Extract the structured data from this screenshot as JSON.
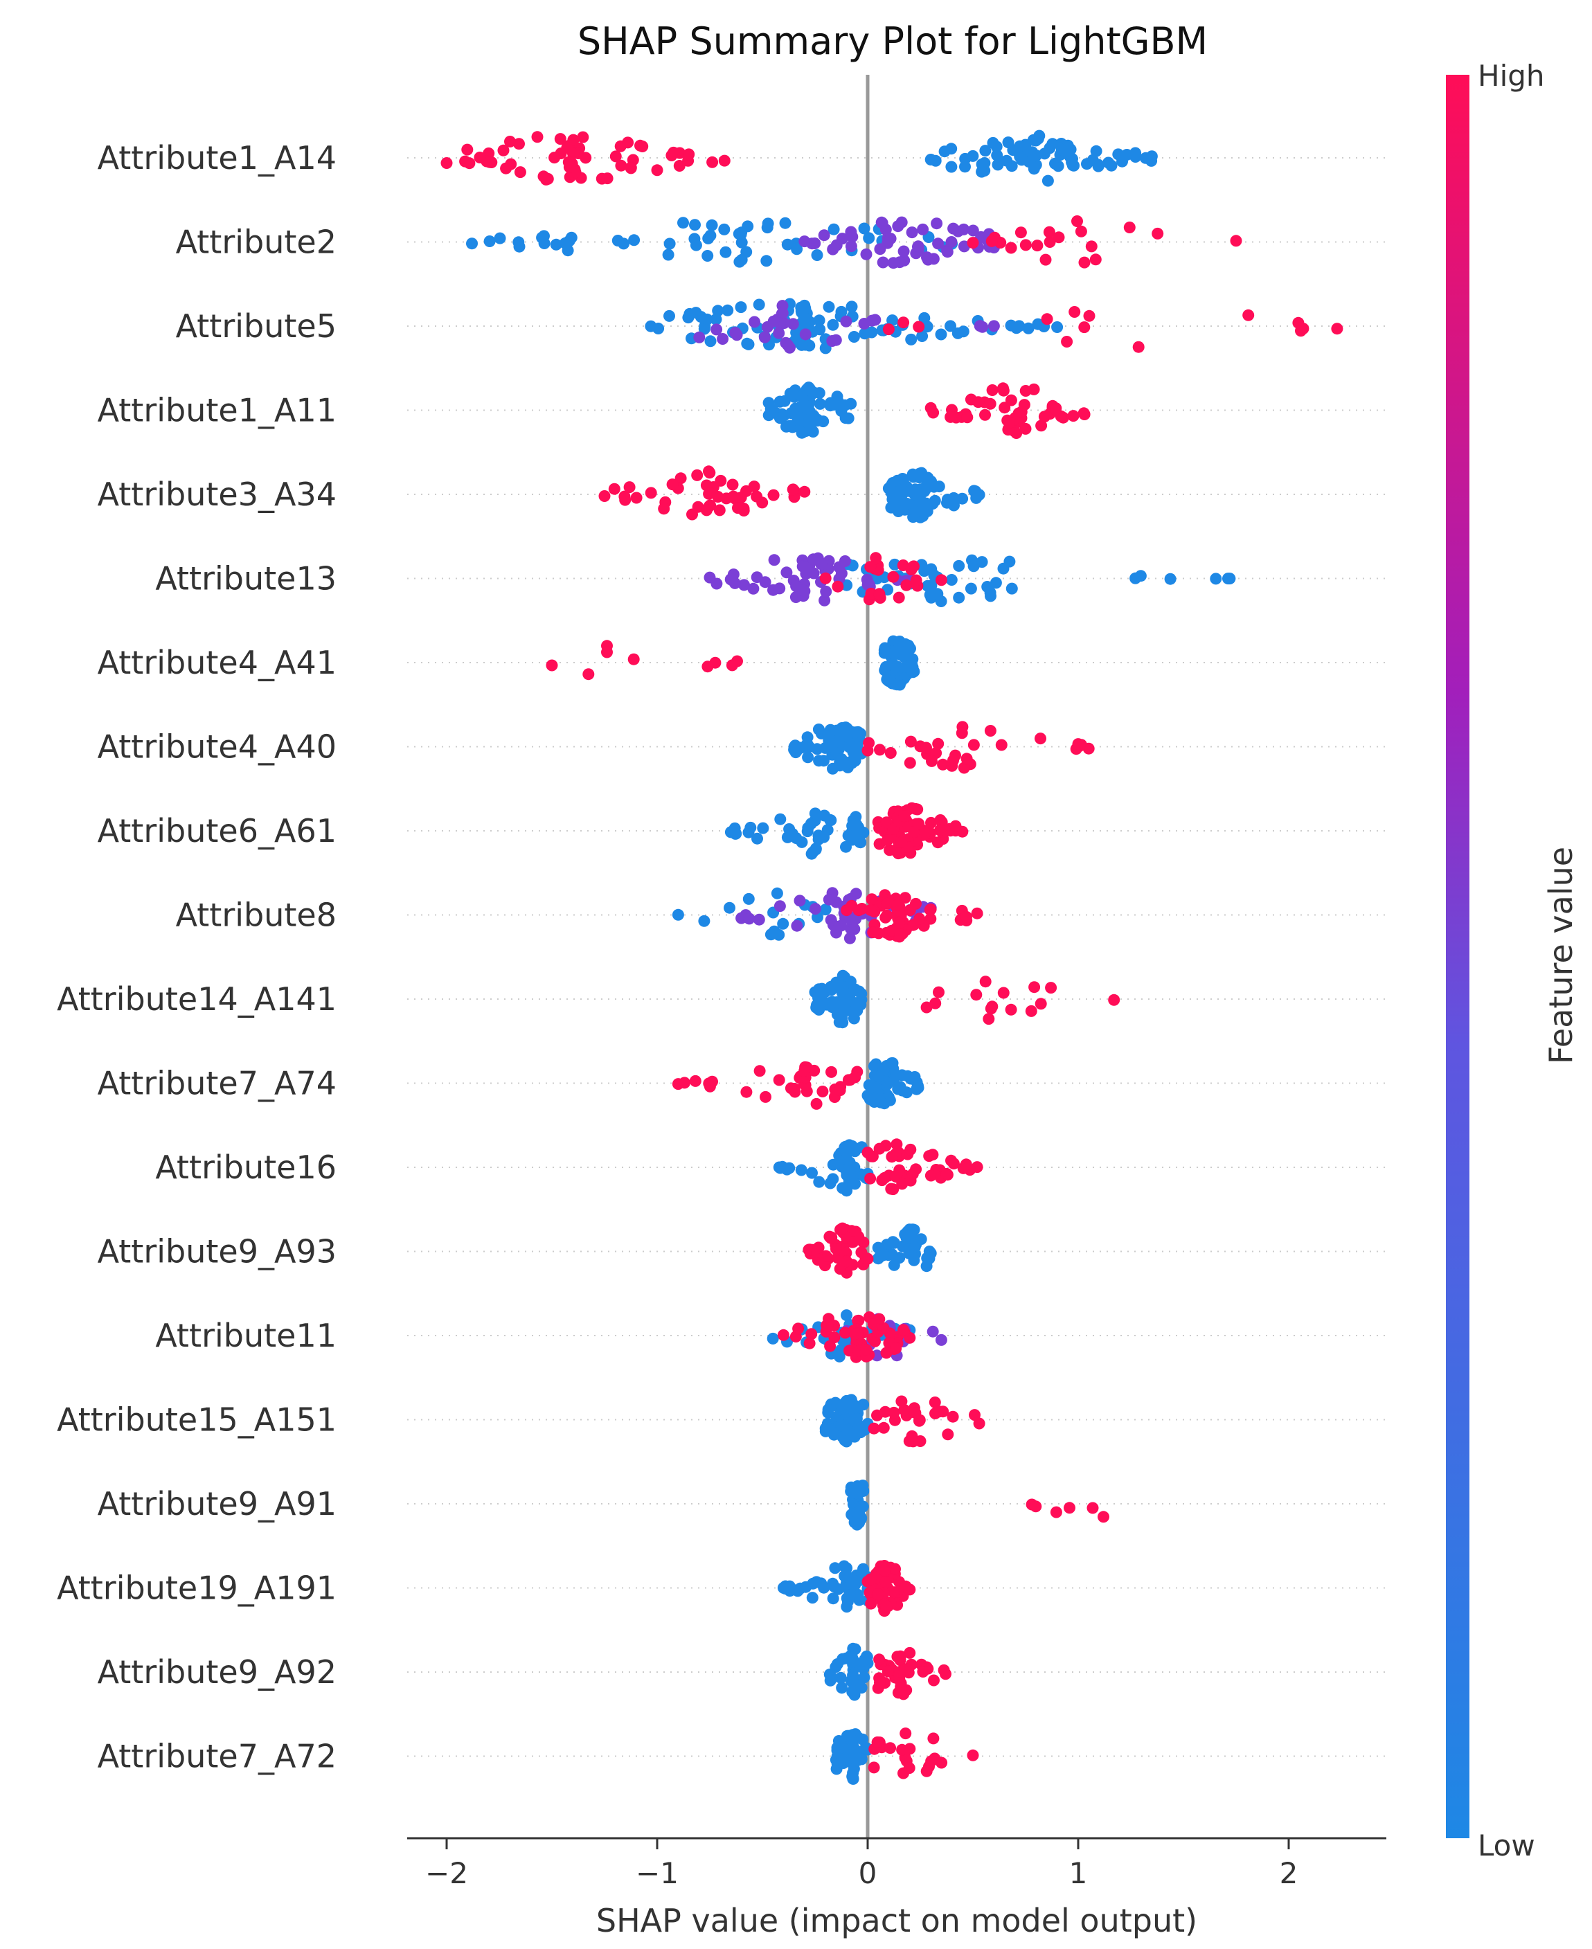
{
  "chart_data": {
    "type": "scatter",
    "title": "SHAP Summary Plot for LightGBM",
    "xlabel": "SHAP value (impact on model output)",
    "xlim": [
      -2.2,
      2.45
    ],
    "xticks": [
      -2,
      -1,
      0,
      1,
      2
    ],
    "xtick_labels": [
      "−2",
      "−1",
      "0",
      "1",
      "2"
    ],
    "zero_line": 0,
    "grid": false,
    "colorbar": {
      "label": "Feature value",
      "high_label": "High",
      "low_label": "Low",
      "high_color": "#ff0d57",
      "mid_color": "#7b3fd6",
      "low_color": "#1e88e5"
    },
    "features": [
      {
        "name": "Attribute1_A14",
        "low": {
          "min": 0.3,
          "max": 1.35,
          "center": 0.8,
          "n": 70
        },
        "mid": {
          "min": 0,
          "max": 0,
          "center": 0,
          "n": 0
        },
        "high": {
          "min": -2.0,
          "max": -0.68,
          "center": -1.4,
          "n": 60
        }
      },
      {
        "name": "Attribute2",
        "low": {
          "min": -1.88,
          "max": 0.4,
          "center": -0.6,
          "n": 55
        },
        "mid": {
          "min": -0.3,
          "max": 0.6,
          "center": 0.2,
          "n": 55
        },
        "high": {
          "min": 0.5,
          "max": 1.75,
          "center": 1.0,
          "n": 20
        }
      },
      {
        "name": "Attribute5",
        "low": {
          "min": -1.03,
          "max": 0.9,
          "center": -0.3,
          "n": 90
        },
        "mid": {
          "min": -0.8,
          "max": 0.6,
          "center": -0.4,
          "n": 30
        },
        "high": {
          "min": 0.1,
          "max": 2.23,
          "center": 1.2,
          "n": 14
        }
      },
      {
        "name": "Attribute1_A11",
        "low": {
          "min": -0.47,
          "max": -0.08,
          "center": -0.28,
          "n": 75
        },
        "mid": {
          "min": 0,
          "max": 0,
          "center": 0,
          "n": 0
        },
        "high": {
          "min": 0.3,
          "max": 1.03,
          "center": 0.7,
          "n": 45
        }
      },
      {
        "name": "Attribute3_A34",
        "low": {
          "min": 0.1,
          "max": 0.53,
          "center": 0.25,
          "n": 70
        },
        "mid": {
          "min": 0,
          "max": 0,
          "center": 0,
          "n": 0
        },
        "high": {
          "min": -1.25,
          "max": -0.3,
          "center": -0.75,
          "n": 45
        }
      },
      {
        "name": "Attribute13",
        "low": {
          "min": -0.1,
          "max": 1.72,
          "center": 0.3,
          "n": 45
        },
        "mid": {
          "min": -0.75,
          "max": 0.2,
          "center": -0.3,
          "n": 50
        },
        "high": {
          "min": -0.2,
          "max": 0.35,
          "center": 0.05,
          "n": 20
        }
      },
      {
        "name": "Attribute4_A41",
        "low": {
          "min": 0.08,
          "max": 0.22,
          "center": 0.14,
          "n": 60
        },
        "mid": {
          "min": 0,
          "max": 0,
          "center": 0,
          "n": 0
        },
        "high": {
          "min": -1.5,
          "max": -0.62,
          "center": -1.1,
          "n": 9
        }
      },
      {
        "name": "Attribute4_A40",
        "low": {
          "min": -0.35,
          "max": -0.03,
          "center": -0.15,
          "n": 70
        },
        "mid": {
          "min": 0,
          "max": 0,
          "center": 0,
          "n": 0
        },
        "high": {
          "min": 0.0,
          "max": 1.05,
          "center": 0.4,
          "n": 30
        }
      },
      {
        "name": "Attribute6_A61",
        "low": {
          "min": -0.65,
          "max": -0.02,
          "center": -0.25,
          "n": 45
        },
        "mid": {
          "min": 0,
          "max": 0,
          "center": 0,
          "n": 0
        },
        "high": {
          "min": 0.05,
          "max": 0.45,
          "center": 0.18,
          "n": 70
        }
      },
      {
        "name": "Attribute8",
        "low": {
          "min": -0.9,
          "max": -0.2,
          "center": -0.45,
          "n": 15
        },
        "mid": {
          "min": -0.6,
          "max": 0.3,
          "center": -0.1,
          "n": 40
        },
        "high": {
          "min": -0.1,
          "max": 0.52,
          "center": 0.15,
          "n": 55
        }
      },
      {
        "name": "Attribute14_A141",
        "low": {
          "min": -0.25,
          "max": -0.03,
          "center": -0.12,
          "n": 60
        },
        "mid": {
          "min": 0,
          "max": 0,
          "center": 0,
          "n": 0
        },
        "high": {
          "min": 0.28,
          "max": 1.17,
          "center": 0.6,
          "n": 15
        }
      },
      {
        "name": "Attribute7_A74",
        "low": {
          "min": 0.0,
          "max": 0.24,
          "center": 0.08,
          "n": 60
        },
        "mid": {
          "min": 0,
          "max": 0,
          "center": 0,
          "n": 0
        },
        "high": {
          "min": -0.9,
          "max": -0.05,
          "center": -0.3,
          "n": 35
        }
      },
      {
        "name": "Attribute16",
        "low": {
          "min": -0.42,
          "max": 0.0,
          "center": -0.1,
          "n": 50
        },
        "mid": {
          "min": 0,
          "max": 0,
          "center": 0,
          "n": 0
        },
        "high": {
          "min": 0.0,
          "max": 0.52,
          "center": 0.15,
          "n": 40
        }
      },
      {
        "name": "Attribute9_A93",
        "low": {
          "min": 0.05,
          "max": 0.3,
          "center": 0.2,
          "n": 40
        },
        "mid": {
          "min": 0,
          "max": 0,
          "center": 0,
          "n": 0
        },
        "high": {
          "min": -0.28,
          "max": 0.0,
          "center": -0.1,
          "n": 45
        }
      },
      {
        "name": "Attribute11",
        "low": {
          "min": -0.45,
          "max": 0.2,
          "center": -0.1,
          "n": 25
        },
        "mid": {
          "min": -0.1,
          "max": 0.35,
          "center": 0.12,
          "n": 20
        },
        "high": {
          "min": -0.4,
          "max": 0.2,
          "center": -0.05,
          "n": 50
        }
      },
      {
        "name": "Attribute15_A151",
        "low": {
          "min": -0.2,
          "max": 0.0,
          "center": -0.1,
          "n": 60
        },
        "mid": {
          "min": 0,
          "max": 0,
          "center": 0,
          "n": 0
        },
        "high": {
          "min": 0.03,
          "max": 0.53,
          "center": 0.25,
          "n": 25
        }
      },
      {
        "name": "Attribute9_A91",
        "low": {
          "min": -0.08,
          "max": -0.02,
          "center": -0.05,
          "n": 30
        },
        "mid": {
          "min": 0,
          "max": 0,
          "center": 0,
          "n": 0
        },
        "high": {
          "min": 0.78,
          "max": 1.12,
          "center": 1.0,
          "n": 6
        }
      },
      {
        "name": "Attribute19_A191",
        "low": {
          "min": -0.4,
          "max": 0.0,
          "center": -0.1,
          "n": 45
        },
        "mid": {
          "min": 0,
          "max": 0,
          "center": 0,
          "n": 0
        },
        "high": {
          "min": 0.0,
          "max": 0.2,
          "center": 0.08,
          "n": 50
        }
      },
      {
        "name": "Attribute9_A92",
        "low": {
          "min": -0.18,
          "max": 0.0,
          "center": -0.07,
          "n": 45
        },
        "mid": {
          "min": 0,
          "max": 0,
          "center": 0,
          "n": 0
        },
        "high": {
          "min": 0.05,
          "max": 0.37,
          "center": 0.15,
          "n": 40
        }
      },
      {
        "name": "Attribute7_A72",
        "low": {
          "min": -0.15,
          "max": 0.0,
          "center": -0.07,
          "n": 55
        },
        "mid": {
          "min": 0,
          "max": 0,
          "center": 0,
          "n": 0
        },
        "high": {
          "min": 0.03,
          "max": 0.5,
          "center": 0.2,
          "n": 20
        }
      }
    ]
  }
}
